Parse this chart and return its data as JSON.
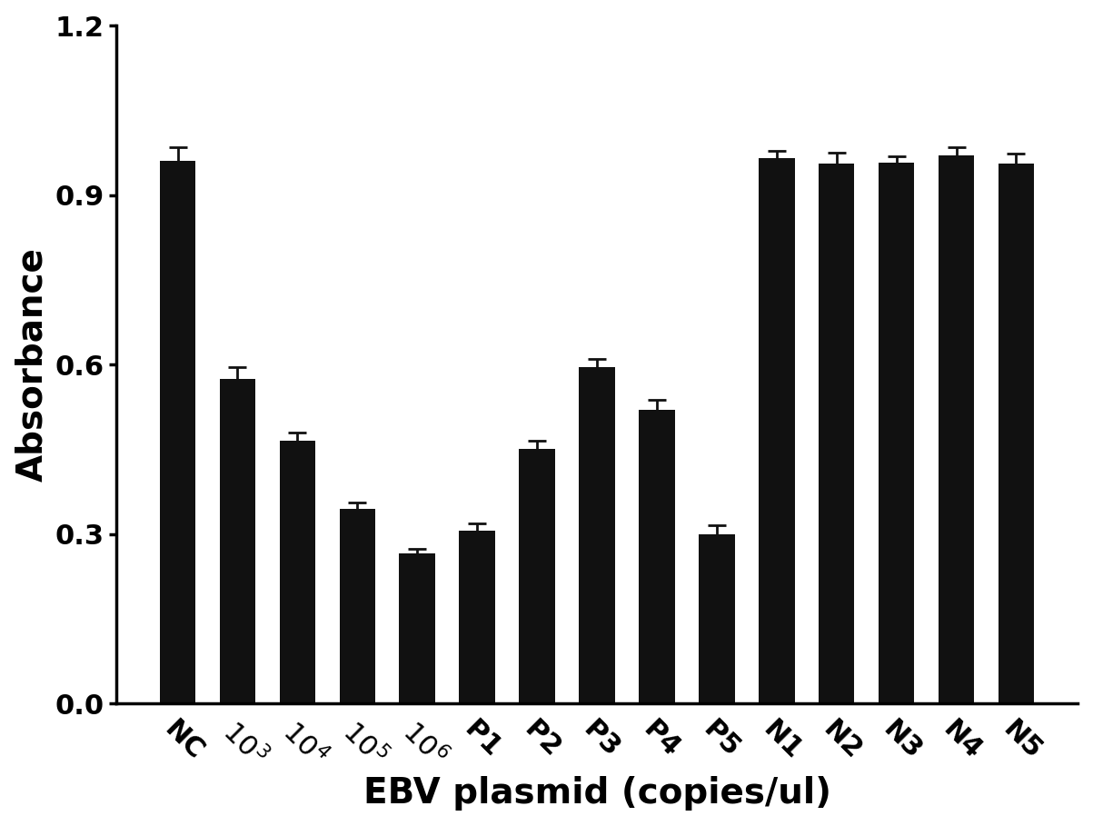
{
  "categories": [
    "NC",
    "10^3",
    "10^4",
    "10^5",
    "10^6",
    "P1",
    "P2",
    "P3",
    "P4",
    "P5",
    "N1",
    "N2",
    "N3",
    "N4",
    "N5"
  ],
  "values": [
    0.96,
    0.575,
    0.465,
    0.345,
    0.265,
    0.305,
    0.45,
    0.595,
    0.52,
    0.3,
    0.965,
    0.955,
    0.958,
    0.97,
    0.955
  ],
  "errors": [
    0.025,
    0.02,
    0.014,
    0.01,
    0.008,
    0.013,
    0.015,
    0.015,
    0.018,
    0.015,
    0.013,
    0.02,
    0.01,
    0.015,
    0.018
  ],
  "bar_color": "#111111",
  "error_color": "#111111",
  "ylabel": "Absorbance",
  "xlabel": "EBV plasmid (copies/ul)",
  "ylim": [
    0,
    1.2
  ],
  "yticks": [
    0.0,
    0.3,
    0.6,
    0.9,
    1.2
  ],
  "ylabel_fontsize": 28,
  "xlabel_fontsize": 28,
  "tick_fontsize": 22,
  "background_color": "#ffffff",
  "bar_width": 0.6
}
